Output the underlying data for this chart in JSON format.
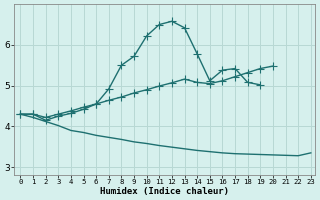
{
  "xlabel": "Humidex (Indice chaleur)",
  "bg_color": "#d6f0ed",
  "grid_color": "#b8d8d4",
  "line_color": "#1e7070",
  "xlim": [
    -0.5,
    23.3
  ],
  "ylim": [
    2.8,
    7.0
  ],
  "x_all": [
    0,
    1,
    2,
    3,
    4,
    5,
    6,
    7,
    8,
    9,
    10,
    11,
    12,
    13,
    14,
    15,
    16,
    17,
    18,
    19,
    20,
    21,
    22,
    23
  ],
  "line1_y": [
    4.3,
    4.3,
    4.15,
    4.25,
    4.32,
    4.42,
    4.55,
    4.92,
    5.5,
    5.72,
    6.22,
    6.5,
    6.58,
    6.42,
    5.78,
    5.12,
    5.38,
    5.42,
    5.08,
    5.02,
    null,
    null,
    null,
    null
  ],
  "line2_y": [
    4.3,
    4.3,
    4.22,
    4.3,
    4.38,
    4.47,
    4.55,
    4.64,
    4.72,
    4.82,
    4.9,
    4.99,
    5.07,
    5.16,
    5.08,
    5.05,
    5.12,
    5.22,
    5.32,
    5.42,
    5.48,
    null,
    null,
    null
  ],
  "line3_y": [
    4.3,
    4.22,
    4.12,
    4.02,
    3.9,
    3.85,
    3.78,
    3.73,
    3.68,
    3.62,
    3.58,
    3.53,
    3.49,
    3.45,
    3.41,
    3.38,
    3.35,
    3.33,
    3.32,
    3.31,
    3.3,
    3.29,
    3.28,
    3.35
  ],
  "xticks": [
    0,
    1,
    2,
    3,
    4,
    5,
    6,
    7,
    8,
    9,
    10,
    11,
    12,
    13,
    14,
    15,
    16,
    17,
    18,
    19,
    20,
    21,
    22,
    23
  ],
  "xtick_labels": [
    "0",
    "1",
    "2",
    "3",
    "4",
    "5",
    "6",
    "7",
    "8",
    "9",
    "10",
    "11",
    "12",
    "13",
    "14",
    "15",
    "16",
    "17",
    "18",
    "19",
    "20",
    "21",
    "22",
    "23"
  ],
  "yticks": [
    3,
    4,
    5,
    6
  ],
  "markersize": 2.5,
  "linewidth": 1.0
}
